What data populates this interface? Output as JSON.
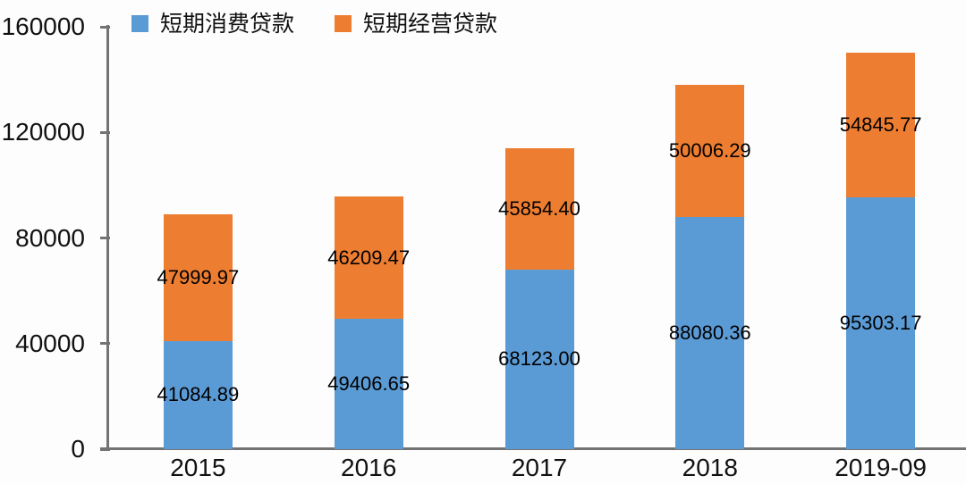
{
  "chart_data": {
    "type": "bar",
    "stacked": true,
    "title": "",
    "categories": [
      "2015",
      "2016",
      "2017",
      "2018",
      "2019-09"
    ],
    "series": [
      {
        "name": "短期消费贷款",
        "color": "#5b9bd5",
        "values": [
          41084.89,
          49406.65,
          68123.0,
          88080.36,
          95303.17
        ],
        "labels": [
          "41084.89",
          "49406.65",
          "68123.00",
          "88080.36",
          "95303.17"
        ]
      },
      {
        "name": "短期经营贷款",
        "color": "#ed7d31",
        "values": [
          47999.97,
          46209.47,
          45854.4,
          50006.29,
          54845.77
        ],
        "labels": [
          "47999.97",
          "46209.47",
          "45854.40",
          "50006.29",
          "54845.77"
        ]
      }
    ],
    "ylim": [
      0,
      160000
    ],
    "yticks": [
      0,
      40000,
      80000,
      120000,
      160000
    ],
    "ytick_labels": [
      "0",
      "40000",
      "80000",
      "120000",
      "160000"
    ],
    "grid": false,
    "legend_position": "top-left",
    "colors": {
      "axis": "#737373",
      "text": "#111111",
      "value_label": "#000000",
      "background": "#fdfdfd"
    }
  }
}
